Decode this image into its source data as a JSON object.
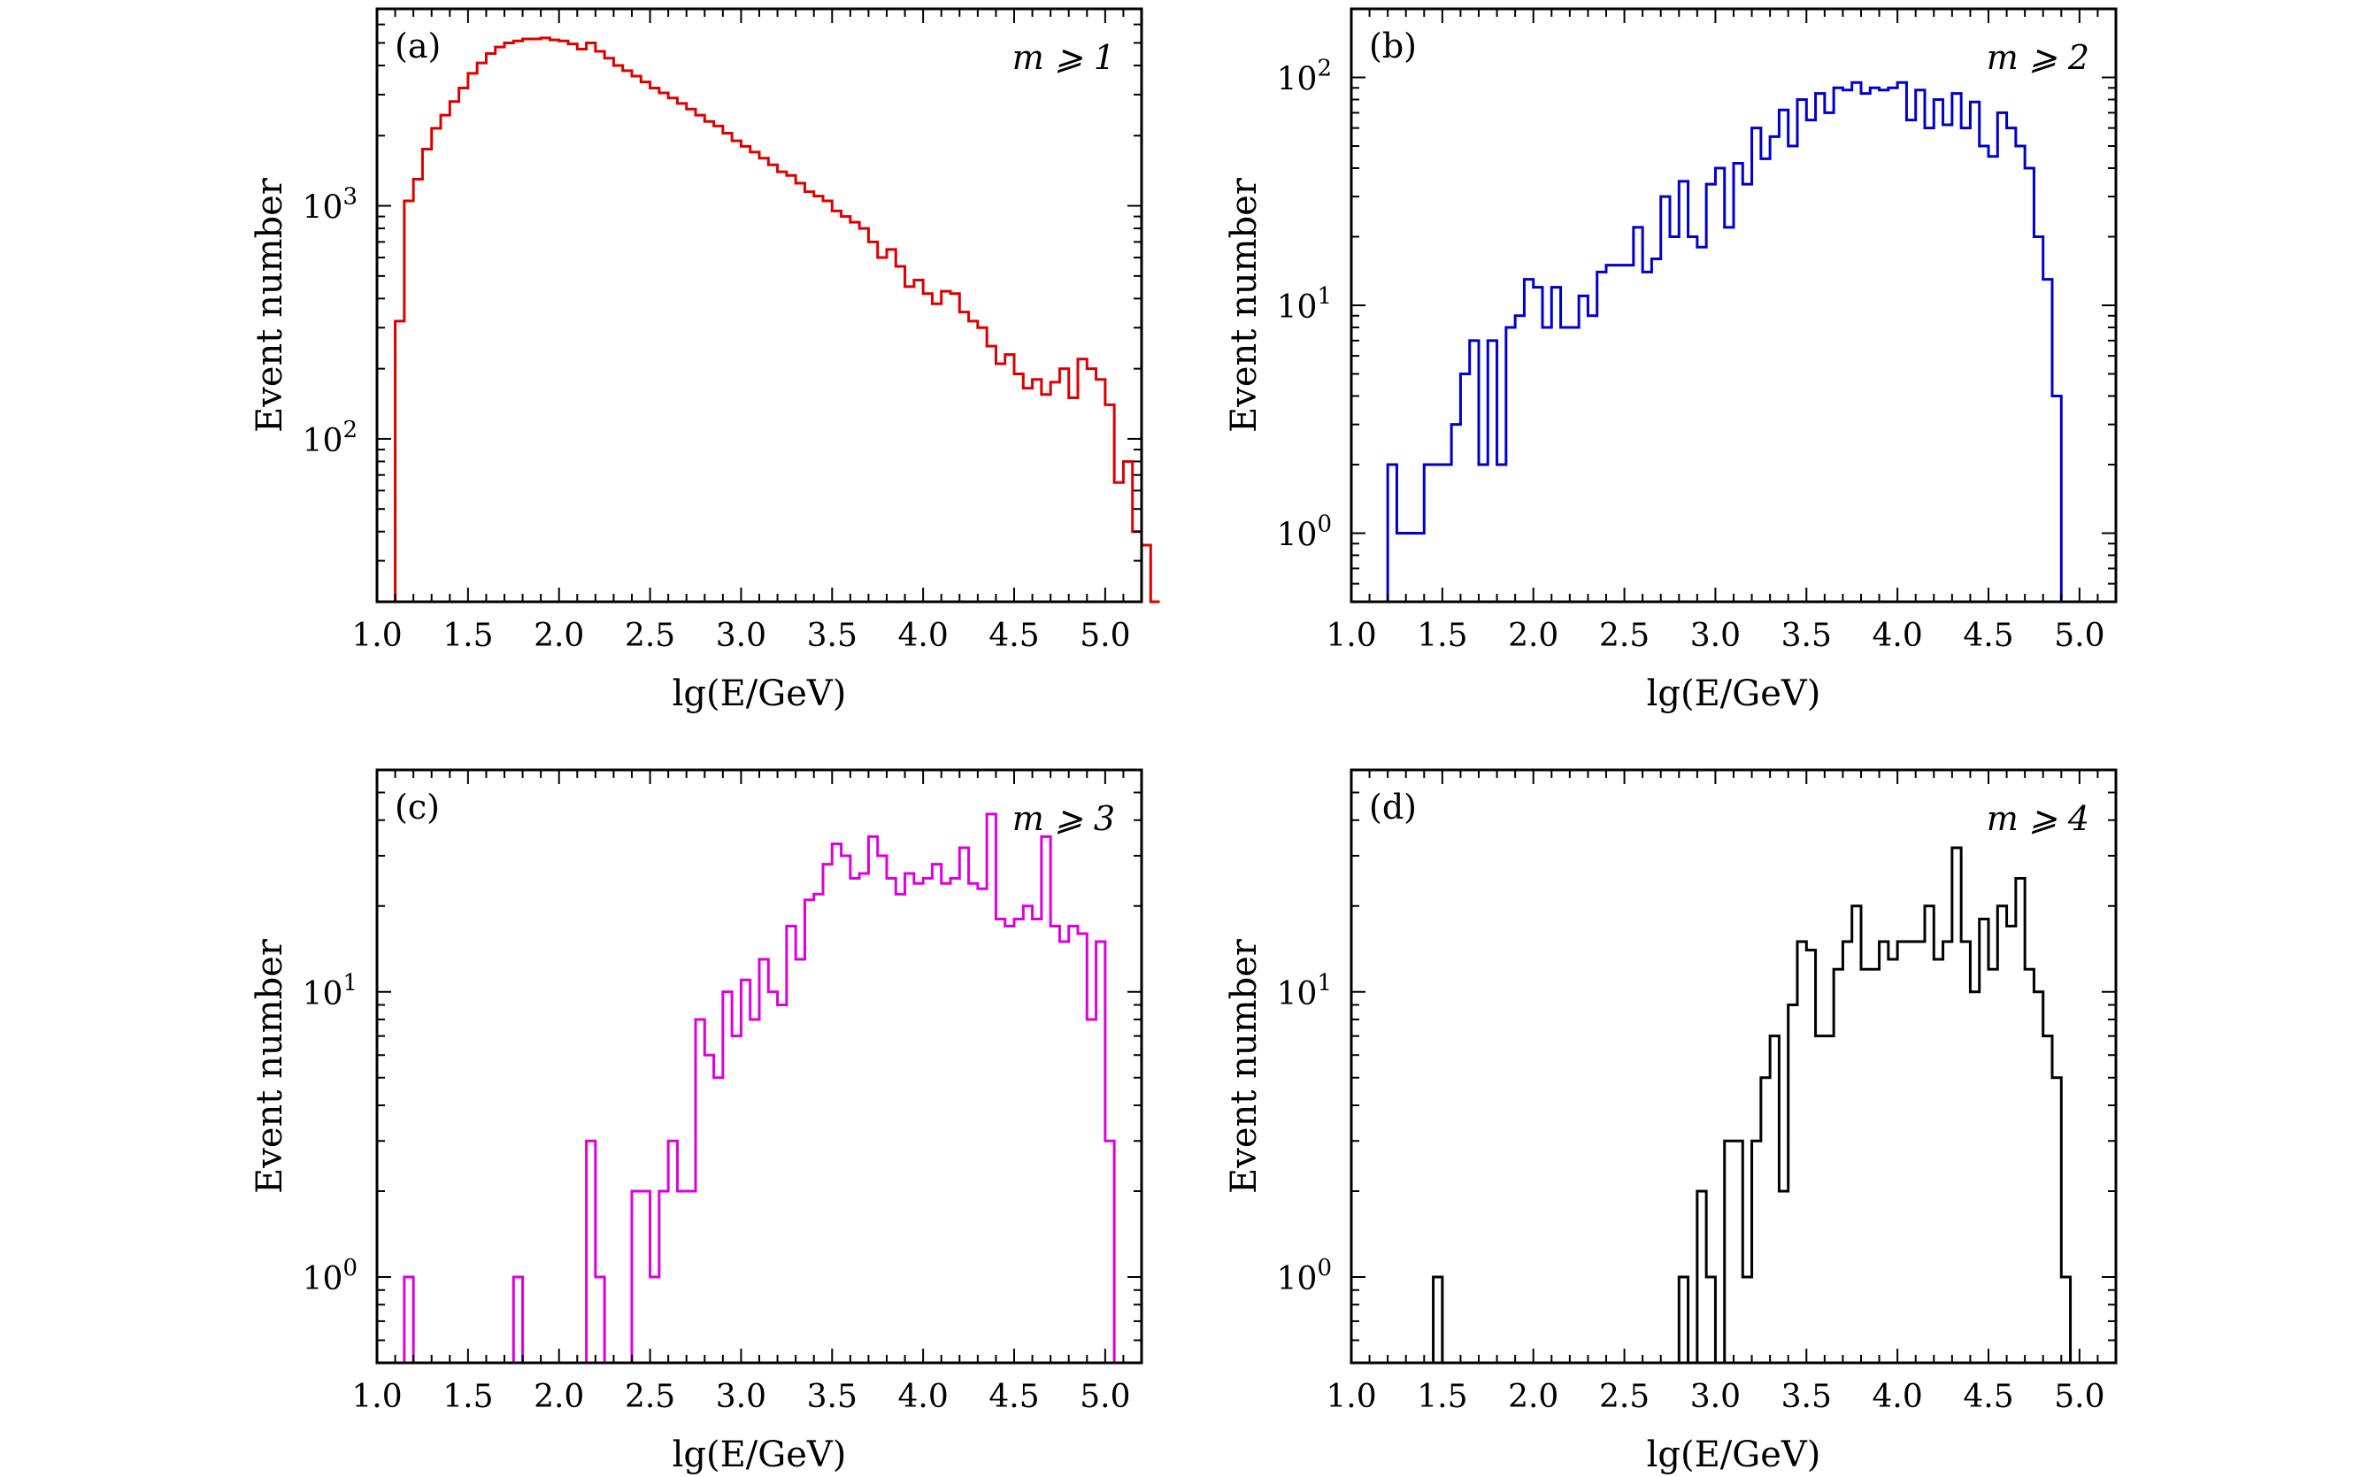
{
  "chart_data": [
    {
      "type": "line",
      "panel_label": "(a)",
      "annotation": "m ⩾ 1",
      "xlabel": "lg(E/GeV)",
      "ylabel": "Event number",
      "color": "#dd0000",
      "xlim": [
        1.0,
        5.2
      ],
      "ylim": [
        20,
        7000
      ],
      "yscale": "log",
      "xticks": [
        "1.0",
        "1.5",
        "2.0",
        "2.5",
        "3.0",
        "3.5",
        "4.0",
        "4.5",
        "5.0"
      ],
      "yticks": [
        {
          "base": "10",
          "exp": "2",
          "value": 100
        },
        {
          "base": "10",
          "exp": "3",
          "value": 1000
        }
      ],
      "bin_width": 0.05,
      "x_start": 1.1,
      "values": [
        320,
        1050,
        1300,
        1750,
        2150,
        2450,
        2800,
        3200,
        3700,
        4100,
        4500,
        4800,
        5000,
        5100,
        5200,
        5200,
        5250,
        5150,
        5100,
        4950,
        4700,
        5000,
        4600,
        4300,
        4000,
        3800,
        3600,
        3400,
        3200,
        3050,
        2900,
        2750,
        2600,
        2450,
        2300,
        2200,
        2050,
        1900,
        1800,
        1700,
        1600,
        1500,
        1400,
        1350,
        1250,
        1150,
        1100,
        1050,
        950,
        900,
        850,
        800,
        700,
        600,
        650,
        550,
        450,
        480,
        420,
        380,
        430,
        420,
        350,
        320,
        300,
        250,
        210,
        230,
        190,
        165,
        180,
        155,
        175,
        200,
        150,
        220,
        200,
        180,
        140,
        65,
        80,
        40,
        35,
        20
      ]
    },
    {
      "type": "line",
      "panel_label": "(b)",
      "annotation": "m ⩾ 2",
      "xlabel": "lg(E/GeV)",
      "ylabel": "Event number",
      "color": "#0000cc",
      "xlim": [
        1.0,
        5.2
      ],
      "ylim": [
        0.5,
        200
      ],
      "yscale": "log",
      "xticks": [
        "1.0",
        "1.5",
        "2.0",
        "2.5",
        "3.0",
        "3.5",
        "4.0",
        "4.5",
        "5.0"
      ],
      "yticks": [
        {
          "base": "10",
          "exp": "0",
          "value": 1
        },
        {
          "base": "10",
          "exp": "1",
          "value": 10
        },
        {
          "base": "10",
          "exp": "2",
          "value": 100
        }
      ],
      "bin_width": 0.05,
      "x_start": 1.2,
      "values": [
        2,
        1,
        1,
        1,
        2,
        2,
        2,
        3,
        5,
        7,
        2,
        7,
        2,
        8,
        9,
        13,
        12,
        8,
        12,
        8,
        8,
        11,
        9,
        14,
        15,
        15,
        15,
        22,
        14,
        16,
        30,
        20,
        35,
        20,
        18,
        34,
        40,
        22,
        42,
        34,
        60,
        44,
        55,
        72,
        50,
        80,
        65,
        85,
        70,
        90,
        88,
        95,
        85,
        90,
        88,
        90,
        95,
        65,
        88,
        60,
        80,
        62,
        85,
        60,
        78,
        50,
        45,
        70,
        60,
        50,
        40,
        20,
        13,
        4,
        0.5,
        0.5
      ]
    },
    {
      "type": "line",
      "panel_label": "(c)",
      "annotation": "m ⩾ 3",
      "xlabel": "lg(E/GeV)",
      "ylabel": "Event number",
      "color": "#dd00dd",
      "xlim": [
        1.0,
        5.2
      ],
      "ylim": [
        0.5,
        60
      ],
      "yscale": "log",
      "xticks": [
        "1.0",
        "1.5",
        "2.0",
        "2.5",
        "3.0",
        "3.5",
        "4.0",
        "4.5",
        "5.0"
      ],
      "yticks": [
        {
          "base": "10",
          "exp": "0",
          "value": 1
        },
        {
          "base": "10",
          "exp": "1",
          "value": 10
        }
      ],
      "bin_width": 0.05,
      "x_start": 1.1,
      "values": [
        0.5,
        1,
        0.5,
        0.5,
        0.5,
        0.5,
        0.5,
        0.5,
        0.5,
        0.5,
        0.5,
        0.5,
        0.5,
        1,
        0.5,
        0.5,
        0.5,
        0.5,
        0.5,
        0.5,
        0.5,
        3,
        1,
        0.5,
        0.5,
        0.5,
        2,
        2,
        1,
        2,
        3,
        2,
        2,
        8,
        6,
        5,
        10,
        7,
        11,
        8,
        13,
        10,
        9,
        17,
        13,
        21,
        22,
        28,
        33,
        30,
        25,
        26,
        35,
        30,
        25,
        22,
        26,
        24,
        25,
        28,
        24,
        25,
        32,
        24,
        23,
        42,
        18,
        17,
        18,
        20,
        18,
        35,
        17,
        15,
        17,
        16,
        8,
        15,
        3,
        0.5,
        0.5
      ]
    },
    {
      "type": "line",
      "panel_label": "(d)",
      "annotation": "m ⩾ 4",
      "xlabel": "lg(E/GeV)",
      "ylabel": "Event number",
      "color": "#000000",
      "xlim": [
        1.0,
        5.2
      ],
      "ylim": [
        0.5,
        60
      ],
      "yscale": "log",
      "xticks": [
        "1.0",
        "1.5",
        "2.0",
        "2.5",
        "3.0",
        "3.5",
        "4.0",
        "4.5",
        "5.0"
      ],
      "yticks": [
        {
          "base": "10",
          "exp": "0",
          "value": 1
        },
        {
          "base": "10",
          "exp": "1",
          "value": 10
        }
      ],
      "bin_width": 0.05,
      "x_start": 1.45,
      "values": [
        1,
        0.5,
        0.5,
        0.5,
        0.5,
        0.5,
        0.5,
        0.5,
        0.5,
        0.5,
        0.5,
        0.5,
        0.5,
        0.5,
        0.5,
        0.5,
        0.5,
        0.5,
        0.5,
        0.5,
        0.5,
        0.5,
        0.5,
        0.5,
        0.5,
        0.5,
        0.5,
        1,
        0.5,
        2,
        1,
        0.5,
        3,
        3,
        1,
        3,
        5,
        7,
        2,
        9,
        15,
        14,
        7,
        7,
        12,
        15,
        20,
        12,
        12,
        15,
        13,
        15,
        15,
        15,
        20,
        13,
        15,
        32,
        15,
        10,
        18,
        12,
        20,
        17,
        25,
        12,
        10,
        7,
        5,
        1
      ]
    }
  ]
}
